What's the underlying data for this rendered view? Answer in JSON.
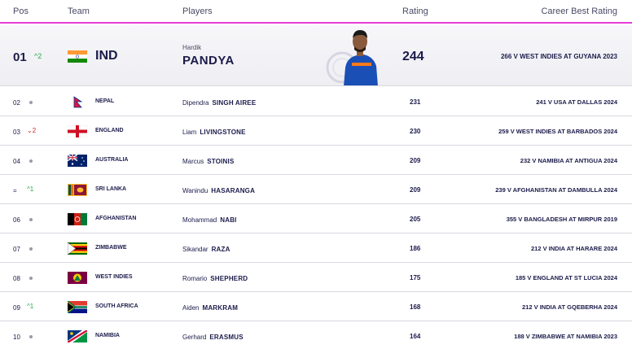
{
  "headers": {
    "pos": "Pos",
    "team": "Team",
    "players": "Players",
    "rating": "Rating",
    "career": "Career Best Rating"
  },
  "top": {
    "pos": "01",
    "move_symbol": "^",
    "move_value": "2",
    "team": "IND",
    "first": "Hardik",
    "last": "PANDYA",
    "rating": "244",
    "career": "266 V WEST INDIES AT GUYANA 2023",
    "flag_icon": "india-flag-icon"
  },
  "rows": [
    {
      "pos": "02",
      "move": "dot",
      "move_value": "",
      "team": "NEPAL",
      "first": "Dipendra",
      "last": "SINGH AIREE",
      "rating": "231",
      "career": "241 V USA AT DALLAS 2024",
      "flag_icon": "nepal-flag-icon"
    },
    {
      "pos": "03",
      "move": "down",
      "move_value": "2",
      "team": "ENGLAND",
      "first": "Liam",
      "last": "LIVINGSTONE",
      "rating": "230",
      "career": "259 V WEST INDIES AT BARBADOS 2024",
      "flag_icon": "england-flag-icon"
    },
    {
      "pos": "04",
      "move": "dot",
      "move_value": "",
      "team": "AUSTRALIA",
      "first": "Marcus",
      "last": "STOINIS",
      "rating": "209",
      "career": "232 V NAMIBIA AT ANTIGUA 2024",
      "flag_icon": "australia-flag-icon"
    },
    {
      "pos": "=",
      "move": "up",
      "move_value": "1",
      "team": "SRI LANKA",
      "first": "Wanindu",
      "last": "HASARANGA",
      "rating": "209",
      "career": "239 V AFGHANISTAN AT DAMBULLA 2024",
      "flag_icon": "sri-lanka-flag-icon"
    },
    {
      "pos": "06",
      "move": "dot",
      "move_value": "",
      "team": "AFGHANISTAN",
      "first": "Mohammad",
      "last": "NABI",
      "rating": "205",
      "career": "355 V BANGLADESH AT MIRPUR 2019",
      "flag_icon": "afghanistan-flag-icon"
    },
    {
      "pos": "07",
      "move": "dot",
      "move_value": "",
      "team": "ZIMBABWE",
      "first": "Sikandar",
      "last": "RAZA",
      "rating": "186",
      "career": "212 V INDIA AT HARARE 2024",
      "flag_icon": "zimbabwe-flag-icon"
    },
    {
      "pos": "08",
      "move": "dot",
      "move_value": "",
      "team": "WEST INDIES",
      "first": "Romario",
      "last": "SHEPHERD",
      "rating": "175",
      "career": "185 V ENGLAND AT ST LUCIA 2024",
      "flag_icon": "west-indies-flag-icon"
    },
    {
      "pos": "09",
      "move": "up",
      "move_value": "1",
      "team": "SOUTH AFRICA",
      "first": "Aiden",
      "last": "MARKRAM",
      "rating": "168",
      "career": "212 V INDIA AT GQEBERHA 2024",
      "flag_icon": "south-africa-flag-icon"
    },
    {
      "pos": "10",
      "move": "dot",
      "move_value": "",
      "team": "NAMIBIA",
      "first": "Gerhard",
      "last": "ERASMUS",
      "rating": "164",
      "career": "188 V ZIMBABWE AT NAMIBIA 2023",
      "flag_icon": "namibia-flag-icon"
    }
  ],
  "colors": {
    "accent": "#e63cd8",
    "up": "#2aa84a",
    "down": "#d8232a",
    "text": "#1b1b4b"
  }
}
